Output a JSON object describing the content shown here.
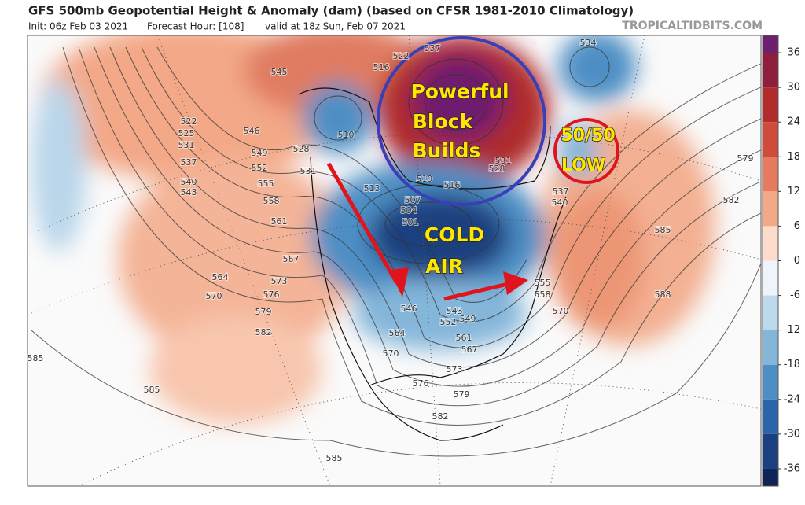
{
  "header": {
    "title": "GFS 500mb Geopotential Height & Anomaly (dam) (based on CFSR 1981-2010 Climatology)",
    "init": "Init: 06z Feb 03 2021",
    "forecast_hour": "Forecast Hour: [108]",
    "valid": "valid at 18z Sun, Feb 07 2021",
    "site": "TROPICALTIDBITS.COM"
  },
  "annotations": {
    "block": [
      "Powerful",
      "Block",
      "Builds"
    ],
    "cold_air": [
      "COLD",
      "AIR"
    ],
    "low": [
      "50/50",
      "LOW"
    ]
  },
  "contour_labels": [
    "545",
    "522",
    "525",
    "531",
    "537",
    "540",
    "543",
    "546",
    "549",
    "552",
    "555",
    "558",
    "561",
    "567",
    "564",
    "573",
    "570",
    "576",
    "579",
    "582",
    "585",
    "585",
    "585",
    "528",
    "531",
    "510",
    "513",
    "504",
    "501",
    "507",
    "519",
    "516",
    "522",
    "516",
    "537",
    "534",
    "528",
    "531",
    "540",
    "537",
    "579",
    "582",
    "585",
    "588",
    "570",
    "555",
    "558",
    "546",
    "543",
    "549",
    "552",
    "564",
    "570",
    "561",
    "567",
    "573",
    "576",
    "579",
    "582"
  ],
  "colorbar": {
    "lim": [
      -39,
      39
    ],
    "ticks": [
      36,
      30,
      24,
      18,
      12,
      6,
      0,
      -6,
      -12,
      -18,
      -24,
      -30,
      -36
    ],
    "colors": [
      "#6e1f6e",
      "#8e1f3c",
      "#b22c2c",
      "#d04b3c",
      "#e67c5d",
      "#f3a887",
      "#fddccc",
      "#eef4f9",
      "#bcd8ec",
      "#84b6da",
      "#4d8fc5",
      "#2b65a9",
      "#1c407f",
      "#0f2558"
    ]
  }
}
